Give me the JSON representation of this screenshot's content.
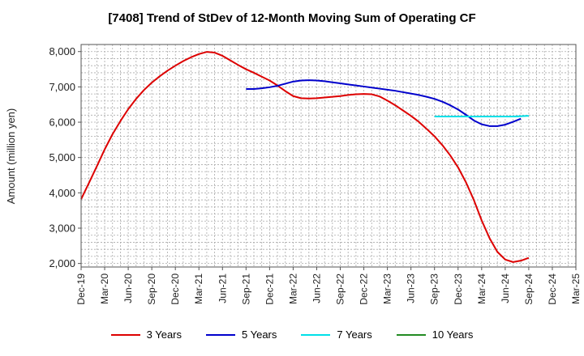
{
  "chart_data": {
    "type": "line",
    "title": "[7408]  Trend of StDev of 12-Month Moving Sum of Operating CF",
    "xlabel": "",
    "ylabel": "Amount (million yen)",
    "ylim": [
      1900,
      8200
    ],
    "yticks": [
      2000,
      3000,
      4000,
      5000,
      6000,
      7000,
      8000
    ],
    "ytick_labels": [
      "2,000",
      "3,000",
      "4,000",
      "5,000",
      "6,000",
      "7,000",
      "8,000"
    ],
    "xlim": [
      "2019-12",
      "2025-03"
    ],
    "xtick_labels": [
      "Dec-19",
      "Mar-20",
      "Jun-20",
      "Sep-20",
      "Dec-20",
      "Mar-21",
      "Jun-21",
      "Sep-21",
      "Dec-21",
      "Mar-22",
      "Jun-22",
      "Sep-22",
      "Dec-22",
      "Mar-23",
      "Jun-23",
      "Sep-23",
      "Dec-23",
      "Mar-24",
      "Jun-24",
      "Sep-24",
      "Dec-24",
      "Mar-25"
    ],
    "grid": true,
    "legend_position": "bottom",
    "series": [
      {
        "name": "3 Years",
        "color": "#dd0000",
        "points": [
          [
            "2019-12",
            3820
          ],
          [
            "2020-01",
            4280
          ],
          [
            "2020-02",
            4750
          ],
          [
            "2020-03",
            5230
          ],
          [
            "2020-04",
            5660
          ],
          [
            "2020-05",
            6030
          ],
          [
            "2020-06",
            6370
          ],
          [
            "2020-07",
            6660
          ],
          [
            "2020-08",
            6910
          ],
          [
            "2020-09",
            7120
          ],
          [
            "2020-10",
            7300
          ],
          [
            "2020-11",
            7460
          ],
          [
            "2020-12",
            7600
          ],
          [
            "2021-01",
            7730
          ],
          [
            "2021-02",
            7840
          ],
          [
            "2021-03",
            7930
          ],
          [
            "2021-04",
            7990
          ],
          [
            "2021-05",
            7970
          ],
          [
            "2021-06",
            7880
          ],
          [
            "2021-07",
            7750
          ],
          [
            "2021-08",
            7620
          ],
          [
            "2021-09",
            7500
          ],
          [
            "2021-10",
            7400
          ],
          [
            "2021-11",
            7290
          ],
          [
            "2021-12",
            7180
          ],
          [
            "2022-01",
            7040
          ],
          [
            "2022-02",
            6880
          ],
          [
            "2022-03",
            6740
          ],
          [
            "2022-04",
            6680
          ],
          [
            "2022-05",
            6670
          ],
          [
            "2022-06",
            6680
          ],
          [
            "2022-07",
            6700
          ],
          [
            "2022-08",
            6720
          ],
          [
            "2022-09",
            6740
          ],
          [
            "2022-10",
            6770
          ],
          [
            "2022-11",
            6790
          ],
          [
            "2022-12",
            6800
          ],
          [
            "2023-01",
            6790
          ],
          [
            "2023-02",
            6730
          ],
          [
            "2023-03",
            6610
          ],
          [
            "2023-04",
            6480
          ],
          [
            "2023-05",
            6330
          ],
          [
            "2023-06",
            6180
          ],
          [
            "2023-07",
            6010
          ],
          [
            "2023-08",
            5810
          ],
          [
            "2023-09",
            5600
          ],
          [
            "2023-10",
            5350
          ],
          [
            "2023-11",
            5060
          ],
          [
            "2023-12",
            4720
          ],
          [
            "2024-01",
            4300
          ],
          [
            "2024-02",
            3800
          ],
          [
            "2024-03",
            3220
          ],
          [
            "2024-04",
            2720
          ],
          [
            "2024-05",
            2330
          ],
          [
            "2024-06",
            2110
          ],
          [
            "2024-07",
            2040
          ],
          [
            "2024-08",
            2080
          ],
          [
            "2024-09",
            2160
          ]
        ]
      },
      {
        "name": "5 Years",
        "color": "#0000cc",
        "points": [
          [
            "2021-09",
            6940
          ],
          [
            "2021-10",
            6940
          ],
          [
            "2021-11",
            6960
          ],
          [
            "2021-12",
            6990
          ],
          [
            "2022-01",
            7030
          ],
          [
            "2022-02",
            7090
          ],
          [
            "2022-03",
            7150
          ],
          [
            "2022-04",
            7180
          ],
          [
            "2022-05",
            7190
          ],
          [
            "2022-06",
            7180
          ],
          [
            "2022-07",
            7160
          ],
          [
            "2022-08",
            7130
          ],
          [
            "2022-09",
            7100
          ],
          [
            "2022-10",
            7070
          ],
          [
            "2022-11",
            7040
          ],
          [
            "2022-12",
            7010
          ],
          [
            "2023-01",
            6980
          ],
          [
            "2023-02",
            6950
          ],
          [
            "2023-03",
            6920
          ],
          [
            "2023-04",
            6890
          ],
          [
            "2023-05",
            6850
          ],
          [
            "2023-06",
            6810
          ],
          [
            "2023-07",
            6770
          ],
          [
            "2023-08",
            6720
          ],
          [
            "2023-09",
            6660
          ],
          [
            "2023-10",
            6580
          ],
          [
            "2023-11",
            6480
          ],
          [
            "2023-12",
            6360
          ],
          [
            "2024-01",
            6210
          ],
          [
            "2024-02",
            6050
          ],
          [
            "2024-03",
            5940
          ],
          [
            "2024-04",
            5890
          ],
          [
            "2024-05",
            5890
          ],
          [
            "2024-06",
            5930
          ],
          [
            "2024-07",
            6010
          ],
          [
            "2024-08",
            6100
          ]
        ]
      },
      {
        "name": "7 Years",
        "color": "#00e0e8",
        "points": [
          [
            "2023-09",
            6160
          ],
          [
            "2023-10",
            6160
          ],
          [
            "2023-11",
            6160
          ],
          [
            "2023-12",
            6160
          ],
          [
            "2024-01",
            6160
          ],
          [
            "2024-02",
            6160
          ],
          [
            "2024-03",
            6160
          ],
          [
            "2024-04",
            6160
          ],
          [
            "2024-05",
            6160
          ],
          [
            "2024-06",
            6160
          ],
          [
            "2024-07",
            6160
          ],
          [
            "2024-08",
            6170
          ],
          [
            "2024-09",
            6180
          ]
        ]
      },
      {
        "name": "10 Years",
        "color": "#228b22",
        "points": []
      }
    ]
  }
}
